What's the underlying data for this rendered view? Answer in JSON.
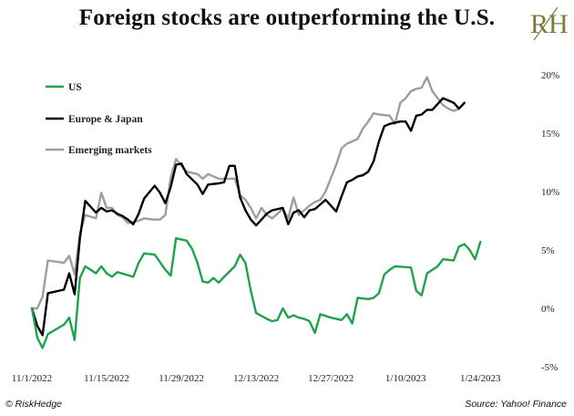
{
  "header": {
    "title": "Foreign stocks are outperforming the U.S.",
    "logo_text": "RH",
    "logo_color": "#7a7d3a"
  },
  "footer": {
    "copyright": "© RiskHedge",
    "source": "Source: Yahoo! Finance"
  },
  "chart_data": {
    "type": "line",
    "title": "Foreign stocks are outperforming the U.S.",
    "x_tick_labels": [
      "11/1/2022",
      "11/15/2022",
      "11/29/2022",
      "12/13/2022",
      "12/27/2022",
      "1/10/2023",
      "1/24/2023"
    ],
    "y_tick_labels": [
      "20%",
      "15%",
      "10%",
      "5%",
      "0%",
      "-5%"
    ],
    "ylim": [
      -5,
      20
    ],
    "yticks": [
      20,
      15,
      10,
      5,
      0,
      -5
    ],
    "x_range": [
      0,
      93
    ],
    "x_tick_positions": [
      0,
      14,
      28,
      42,
      56,
      70,
      84
    ],
    "legend_position": "top-left",
    "grid": false,
    "series": [
      {
        "name": "US",
        "color": "#1fa34a",
        "points": [
          [
            0,
            0
          ],
          [
            1,
            -2.5
          ],
          [
            2,
            -3.4
          ],
          [
            3,
            -2.2
          ],
          [
            6,
            -1.4
          ],
          [
            7,
            -0.8
          ],
          [
            8,
            -2.7
          ],
          [
            9,
            2.6
          ],
          [
            10,
            3.6
          ],
          [
            11,
            3.3
          ],
          [
            12,
            3.0
          ],
          [
            13,
            3.6
          ],
          [
            14,
            3.0
          ],
          [
            15,
            2.7
          ],
          [
            16,
            3.1
          ],
          [
            19,
            2.7
          ],
          [
            20,
            3.9
          ],
          [
            21,
            4.7
          ],
          [
            23,
            4.6
          ],
          [
            25,
            3.3
          ],
          [
            26,
            2.8
          ],
          [
            27,
            6.0
          ],
          [
            29,
            5.8
          ],
          [
            30,
            5.1
          ],
          [
            31,
            3.9
          ],
          [
            32,
            2.3
          ],
          [
            33,
            2.2
          ],
          [
            34,
            2.6
          ],
          [
            35,
            2.2
          ],
          [
            36,
            2.7
          ],
          [
            38,
            3.6
          ],
          [
            39,
            4.6
          ],
          [
            40,
            3.9
          ],
          [
            41,
            1.5
          ],
          [
            42,
            -0.4
          ],
          [
            44,
            -0.9
          ],
          [
            45,
            -1.1
          ],
          [
            46,
            -1.0
          ],
          [
            47,
            0
          ],
          [
            48,
            -0.8
          ],
          [
            49,
            -0.6
          ],
          [
            50,
            -0.8
          ],
          [
            51,
            -0.9
          ],
          [
            52,
            -1.1
          ],
          [
            53,
            -2.1
          ],
          [
            54,
            -0.5
          ],
          [
            56,
            -0.8
          ],
          [
            58,
            -1.0
          ],
          [
            59,
            -0.5
          ],
          [
            60,
            -1.3
          ],
          [
            61,
            0.9
          ],
          [
            63,
            0.8
          ],
          [
            64,
            0.9
          ],
          [
            65,
            1.3
          ],
          [
            66,
            2.9
          ],
          [
            67,
            3.3
          ],
          [
            68,
            3.6
          ],
          [
            71,
            3.5
          ],
          [
            72,
            1.5
          ],
          [
            73,
            1.1
          ],
          [
            74,
            3.0
          ],
          [
            76,
            3.6
          ],
          [
            77,
            4.2
          ],
          [
            79,
            4.1
          ],
          [
            80,
            5.3
          ],
          [
            81,
            5.5
          ],
          [
            82,
            5.0
          ],
          [
            83,
            4.2
          ],
          [
            84,
            5.7
          ]
        ]
      },
      {
        "name": "Europe & Japan",
        "color": "#000000",
        "points": [
          [
            0,
            0
          ],
          [
            1,
            -1.5
          ],
          [
            2,
            -2.3
          ],
          [
            3,
            1.3
          ],
          [
            6,
            1.6
          ],
          [
            7,
            3.0
          ],
          [
            8,
            1.2
          ],
          [
            9,
            6.0
          ],
          [
            10,
            9.2
          ],
          [
            12,
            8.2
          ],
          [
            13,
            8.6
          ],
          [
            14,
            8.3
          ],
          [
            15,
            8.4
          ],
          [
            16,
            8.1
          ],
          [
            17,
            7.9
          ],
          [
            18,
            7.6
          ],
          [
            19,
            7.2
          ],
          [
            20,
            8.1
          ],
          [
            21,
            9.4
          ],
          [
            23,
            10.5
          ],
          [
            24,
            9.9
          ],
          [
            25,
            9.0
          ],
          [
            26,
            10.4
          ],
          [
            27,
            12.3
          ],
          [
            28,
            12.4
          ],
          [
            29,
            11.5
          ],
          [
            31,
            10.6
          ],
          [
            32,
            9.8
          ],
          [
            33,
            10.6
          ],
          [
            35,
            10.7
          ],
          [
            36,
            10.8
          ],
          [
            37,
            12.2
          ],
          [
            38,
            12.2
          ],
          [
            39,
            9.5
          ],
          [
            40,
            8.4
          ],
          [
            41,
            7.6
          ],
          [
            42,
            7.1
          ],
          [
            43,
            7.6
          ],
          [
            44,
            8.1
          ],
          [
            45,
            8.4
          ],
          [
            47,
            8.6
          ],
          [
            48,
            7.2
          ],
          [
            49,
            8.2
          ],
          [
            50,
            8.4
          ],
          [
            51,
            7.8
          ],
          [
            52,
            8.4
          ],
          [
            53,
            8.5
          ],
          [
            54,
            8.9
          ],
          [
            55,
            9.3
          ],
          [
            57,
            8.3
          ],
          [
            58,
            9.6
          ],
          [
            59,
            10.8
          ],
          [
            60,
            11.0
          ],
          [
            61,
            11.3
          ],
          [
            62,
            11.4
          ],
          [
            63,
            11.7
          ],
          [
            64,
            12.6
          ],
          [
            65,
            14.3
          ],
          [
            66,
            15.6
          ],
          [
            67,
            15.8
          ],
          [
            69,
            16.0
          ],
          [
            70,
            16.0
          ],
          [
            71,
            15.2
          ],
          [
            72,
            16.5
          ],
          [
            73,
            16.6
          ],
          [
            74,
            17.0
          ],
          [
            75,
            17.0
          ],
          [
            77,
            18.0
          ],
          [
            79,
            17.6
          ],
          [
            80,
            17.1
          ],
          [
            81,
            17.6
          ]
        ]
      },
      {
        "name": "Emerging markets",
        "color": "#9e9e9e",
        "points": [
          [
            0,
            0
          ],
          [
            1,
            0
          ],
          [
            2,
            1.0
          ],
          [
            3,
            4.1
          ],
          [
            6,
            3.9
          ],
          [
            7,
            4.5
          ],
          [
            8,
            2.9
          ],
          [
            9,
            6.4
          ],
          [
            10,
            8.0
          ],
          [
            12,
            7.7
          ],
          [
            13,
            9.9
          ],
          [
            14,
            8.6
          ],
          [
            15,
            8.6
          ],
          [
            16,
            8.0
          ],
          [
            17,
            7.8
          ],
          [
            18,
            7.3
          ],
          [
            19,
            7.4
          ],
          [
            20,
            7.5
          ],
          [
            21,
            7.7
          ],
          [
            23,
            7.6
          ],
          [
            24,
            7.6
          ],
          [
            25,
            8.0
          ],
          [
            26,
            11.2
          ],
          [
            27,
            12.8
          ],
          [
            28,
            12.2
          ],
          [
            29,
            11.7
          ],
          [
            31,
            11.5
          ],
          [
            32,
            11.1
          ],
          [
            33,
            11.5
          ],
          [
            35,
            11.1
          ],
          [
            36,
            11.1
          ],
          [
            37,
            11.1
          ],
          [
            38,
            11.1
          ],
          [
            39,
            9.7
          ],
          [
            40,
            9.3
          ],
          [
            41,
            8.6
          ],
          [
            42,
            7.7
          ],
          [
            43,
            8.6
          ],
          [
            44,
            8.0
          ],
          [
            45,
            7.7
          ],
          [
            47,
            8.5
          ],
          [
            48,
            7.7
          ],
          [
            49,
            9.5
          ],
          [
            50,
            8.0
          ],
          [
            51,
            8.4
          ],
          [
            52,
            8.8
          ],
          [
            53,
            9.1
          ],
          [
            54,
            9.3
          ],
          [
            55,
            10.0
          ],
          [
            57,
            12.3
          ],
          [
            58,
            13.7
          ],
          [
            59,
            14.1
          ],
          [
            60,
            14.3
          ],
          [
            61,
            14.5
          ],
          [
            62,
            15.4
          ],
          [
            63,
            16.0
          ],
          [
            64,
            16.7
          ],
          [
            65,
            16.6
          ],
          [
            67,
            16.5
          ],
          [
            68,
            15.8
          ],
          [
            69,
            17.6
          ],
          [
            70,
            18.0
          ],
          [
            71,
            18.6
          ],
          [
            72,
            18.8
          ],
          [
            73,
            18.9
          ],
          [
            74,
            19.8
          ],
          [
            75,
            18.6
          ],
          [
            77,
            17.4
          ],
          [
            78,
            17.1
          ],
          [
            79,
            16.9
          ],
          [
            80,
            17.1
          ]
        ]
      }
    ]
  }
}
